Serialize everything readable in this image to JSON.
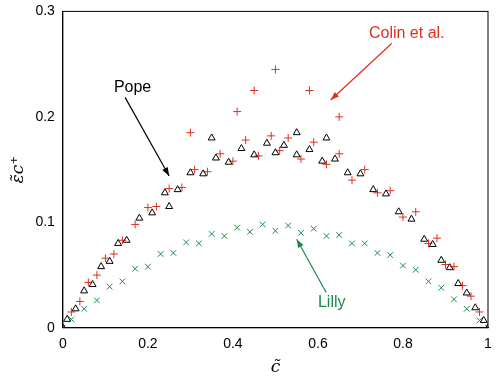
{
  "chart_data": {
    "type": "scatter",
    "x_label": "c̃",
    "y_label": "ε̃c⁺",
    "xlim": [
      0,
      1
    ],
    "ylim": [
      0,
      0.3
    ],
    "xticks": [
      0,
      0.2,
      0.4,
      0.6,
      0.8,
      1
    ],
    "yticks": [
      0,
      0.1,
      0.2,
      0.3
    ],
    "grid": false,
    "series": [
      {
        "name": "Colin et al.",
        "color": "#e0301e",
        "marker": "plus",
        "x": [
          0,
          0.02,
          0.04,
          0.06,
          0.08,
          0.1,
          0.12,
          0.14,
          0.17,
          0.2,
          0.22,
          0.25,
          0.28,
          0.31,
          0.34,
          0.37,
          0.4,
          0.43,
          0.46,
          0.49,
          0.51,
          0.53,
          0.56,
          0.59,
          0.62,
          0.65,
          0.68,
          0.71,
          0.74,
          0.77,
          0.8,
          0.83,
          0.86,
          0.88,
          0.9,
          0.92,
          0.94,
          0.96,
          0.98,
          1,
          0.5,
          0.58,
          0.41,
          0.3,
          0.65,
          0.45
        ],
        "values": [
          0,
          0.015,
          0.025,
          0.043,
          0.05,
          0.066,
          0.07,
          0.083,
          0.098,
          0.114,
          0.115,
          0.132,
          0.133,
          0.15,
          0.148,
          0.165,
          0.158,
          0.178,
          0.163,
          0.182,
          0.168,
          0.18,
          0.16,
          0.176,
          0.155,
          0.165,
          0.14,
          0.15,
          0.128,
          0.13,
          0.105,
          0.11,
          0.08,
          0.085,
          0.06,
          0.058,
          0.04,
          0.03,
          0.015,
          0,
          0.245,
          0.225,
          0.205,
          0.185,
          0.2,
          0.225
        ]
      },
      {
        "name": "Pope",
        "color": "#000000",
        "marker": "triangle",
        "x": [
          0,
          0.01,
          0.03,
          0.05,
          0.07,
          0.09,
          0.11,
          0.13,
          0.15,
          0.18,
          0.21,
          0.24,
          0.27,
          0.3,
          0.33,
          0.36,
          0.39,
          0.42,
          0.45,
          0.48,
          0.5,
          0.52,
          0.55,
          0.58,
          0.61,
          0.64,
          0.67,
          0.7,
          0.73,
          0.76,
          0.79,
          0.82,
          0.85,
          0.87,
          0.89,
          0.91,
          0.93,
          0.95,
          0.97,
          0.99,
          1,
          0.35,
          0.55,
          0.62,
          0.25
        ],
        "values": [
          0,
          0.008,
          0.018,
          0.035,
          0.041,
          0.058,
          0.063,
          0.08,
          0.083,
          0.104,
          0.109,
          0.128,
          0.131,
          0.147,
          0.146,
          0.161,
          0.157,
          0.17,
          0.164,
          0.175,
          0.166,
          0.173,
          0.164,
          0.169,
          0.158,
          0.16,
          0.147,
          0.146,
          0.131,
          0.127,
          0.11,
          0.103,
          0.084,
          0.079,
          0.064,
          0.057,
          0.042,
          0.033,
          0.019,
          0.007,
          0,
          0.18,
          0.185,
          0.18,
          0.115
        ]
      },
      {
        "name": "Lilly",
        "color": "#1a8a4a",
        "marker": "x",
        "x": [
          0,
          0.02,
          0.05,
          0.08,
          0.11,
          0.14,
          0.17,
          0.2,
          0.23,
          0.26,
          0.29,
          0.32,
          0.35,
          0.38,
          0.41,
          0.44,
          0.47,
          0.5,
          0.53,
          0.56,
          0.59,
          0.62,
          0.65,
          0.68,
          0.71,
          0.74,
          0.77,
          0.8,
          0.83,
          0.86,
          0.89,
          0.92,
          0.95,
          0.98,
          1
        ],
        "values": [
          0,
          0.008,
          0.018,
          0.026,
          0.039,
          0.044,
          0.056,
          0.058,
          0.07,
          0.071,
          0.081,
          0.08,
          0.089,
          0.087,
          0.095,
          0.091,
          0.098,
          0.092,
          0.097,
          0.09,
          0.094,
          0.087,
          0.088,
          0.08,
          0.08,
          0.071,
          0.069,
          0.059,
          0.055,
          0.044,
          0.038,
          0.027,
          0.018,
          0.007,
          0
        ]
      }
    ]
  }
}
